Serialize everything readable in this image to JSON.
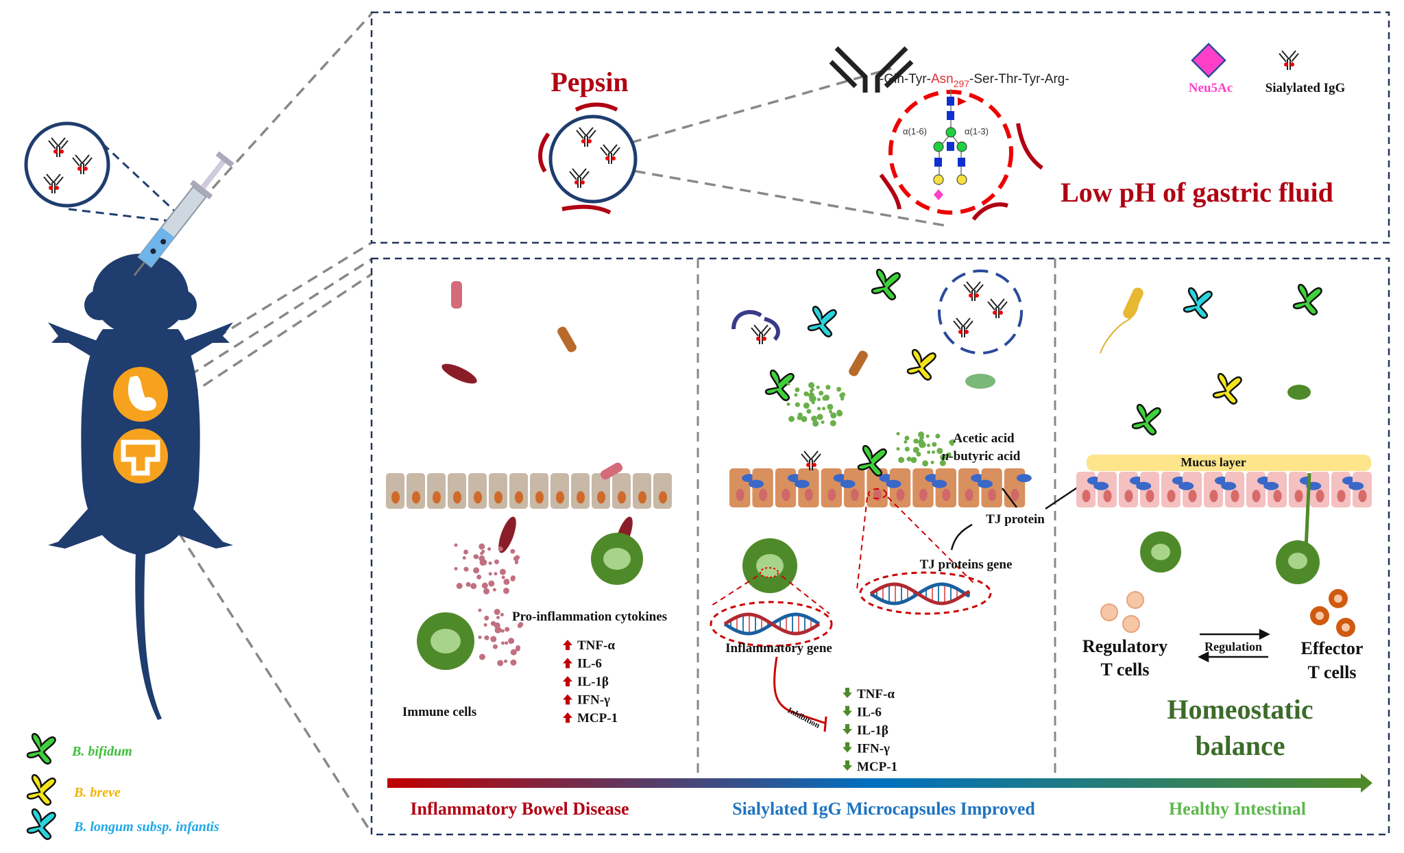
{
  "colors": {
    "mouse": "#1f3d6e",
    "box_border": "#22345a",
    "dark_red": "#b00012",
    "bifidum": "#3fd13a",
    "breve": "#f3e51a",
    "longum": "#2ad4dc",
    "neu5ac": "#ff3fc8",
    "gradient": [
      "#c00000",
      "#0070c0",
      "#4f8a2a"
    ]
  },
  "top_panel": {
    "pepsin": "Pepsin",
    "low_ph": "Low pH of gastric fluid",
    "peptide_prefix": "-Gln-Tyr-",
    "peptide_asn": "Asn",
    "peptide_sub": "297",
    "peptide_suffix": "-Ser-Thr-Tyr-Arg-",
    "linkage_left": "α(1-6)",
    "linkage_right": "α(1-3)",
    "legend_neu5ac": "Neu5Ac",
    "legend_sialylated_igg": "Sialylated IgG"
  },
  "panel_disease": {
    "cytokines_title": "Pro-inflammation cytokines",
    "cytokines": [
      "TNF-α",
      "IL-6",
      "IL-1β",
      "IFN-γ",
      "MCP-1"
    ],
    "trend_icon": "arrow-up-icon",
    "immune_cells": "Immune cells"
  },
  "panel_treatment": {
    "acetic_acid": "Acetic acid",
    "butyric_n": "n",
    "butyric_rest": "-butyric acid",
    "tj_protein": "TJ protein",
    "tj_gene": "TJ proteins gene",
    "inflammatory_gene": "Inflammatory gene",
    "inhibition": "Inhibition",
    "cytokines": [
      "TNF-α",
      "IL-6",
      "IL-1β",
      "IFN-γ",
      "MCP-1"
    ],
    "trend_icon": "arrow-down-icon"
  },
  "panel_healthy": {
    "mucus_layer": "Mucus layer",
    "regulatory_line1": "Regulatory",
    "regulatory_line2": "T cells",
    "regulation": "Regulation",
    "effector_line1": "Effector",
    "effector_line2": "T cells",
    "homeostatic_line1": "Homeostatic",
    "homeostatic_line2": "balance"
  },
  "progress_labels": {
    "left": "Inflammatory Bowel Disease",
    "middle": "Sialylated IgG Microcapsules Improved",
    "right": "Healthy Intestinal"
  },
  "legend": [
    {
      "label": "B. bifidum",
      "color": "#3fd13a",
      "text_color": "#3fbf3a"
    },
    {
      "label": "B. breve",
      "color": "#f3e51a",
      "text_color": "#f0b400"
    },
    {
      "label": "B. longum subsp. infantis",
      "color": "#2ad4dc",
      "text_color": "#1ea8e8"
    }
  ]
}
